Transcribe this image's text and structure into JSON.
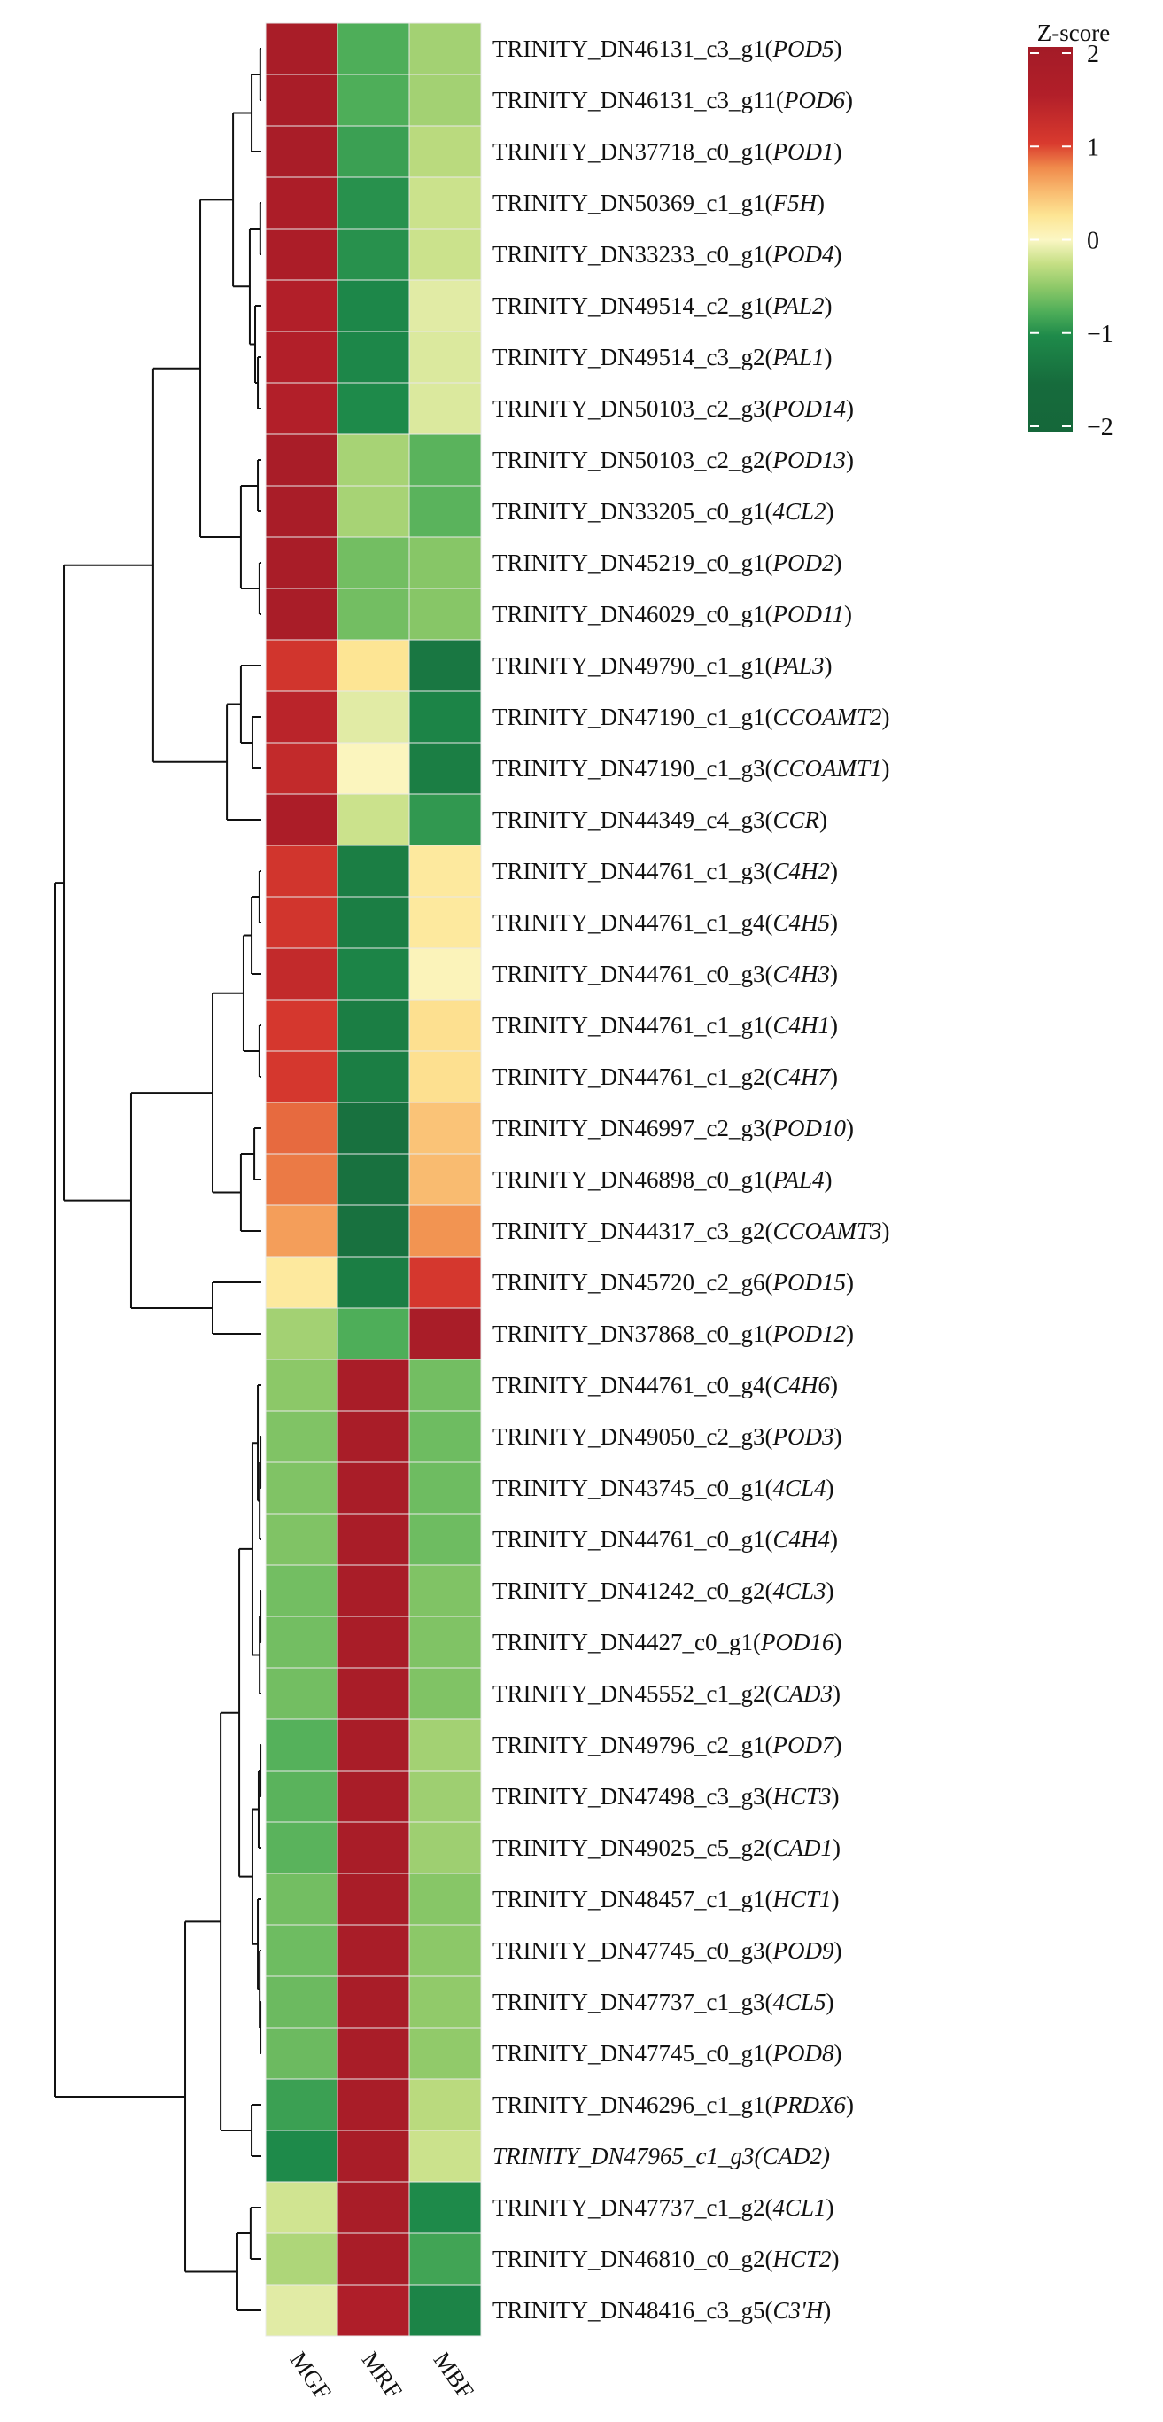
{
  "chart_data": {
    "type": "heatmap",
    "title": "",
    "legend": {
      "title": "Z-score",
      "ticks": [
        2,
        1,
        0,
        -1,
        -2
      ],
      "tick_labels": [
        "2",
        "1",
        "0",
        "−1",
        "−2"
      ],
      "range": [
        -2,
        2
      ],
      "placement": "top-right",
      "colors": {
        "-2": "#15673a",
        "-1.5": "#166b3c",
        "-1": "#1e8a4a",
        "-0.75": "#4eae59",
        "-0.5": "#8cc868",
        "-0.25": "#c5df84",
        "0": "#fbf7c4",
        "0.25": "#fde594",
        "0.5": "#f9bb70",
        "0.75": "#f08a4b",
        "1": "#d93a2e",
        "1.5": "#b21f29",
        "2": "#a31b27"
      }
    },
    "columns": [
      "MGF",
      "MRF",
      "MBF"
    ],
    "rows": [
      {
        "id": "TRINITY_DN46131_c3_g1",
        "gene": "POD5",
        "values": [
          1.8,
          -0.75,
          -0.4
        ]
      },
      {
        "id": "TRINITY_DN46131_c3_g11",
        "gene": "POD6",
        "values": [
          1.8,
          -0.75,
          -0.4
        ]
      },
      {
        "id": "TRINITY_DN37718_c0_g1",
        "gene": "POD1",
        "values": [
          1.8,
          -0.85,
          -0.3
        ]
      },
      {
        "id": "TRINITY_DN50369_c1_g1",
        "gene": "F5H",
        "values": [
          1.7,
          -0.95,
          -0.22
        ]
      },
      {
        "id": "TRINITY_DN33233_c0_g1",
        "gene": "POD4",
        "values": [
          1.7,
          -0.95,
          -0.22
        ]
      },
      {
        "id": "TRINITY_DN49514_c2_g1",
        "gene": "PAL2",
        "values": [
          1.5,
          -1.05,
          -0.12
        ]
      },
      {
        "id": "TRINITY_DN49514_c3_g2",
        "gene": "PAL1",
        "values": [
          1.5,
          -1.05,
          -0.15
        ]
      },
      {
        "id": "TRINITY_DN50103_c2_g3",
        "gene": "POD14",
        "values": [
          1.5,
          -1.0,
          -0.15
        ]
      },
      {
        "id": "TRINITY_DN50103_c2_g2",
        "gene": "POD13",
        "values": [
          1.8,
          -0.38,
          -0.7
        ]
      },
      {
        "id": "TRINITY_DN33205_c0_g1",
        "gene": "4CL2",
        "values": [
          1.8,
          -0.38,
          -0.7
        ]
      },
      {
        "id": "TRINITY_DN45219_c0_g1",
        "gene": "POD2",
        "values": [
          1.8,
          -0.6,
          -0.52
        ]
      },
      {
        "id": "TRINITY_DN46029_c0_g1",
        "gene": "POD11",
        "values": [
          1.8,
          -0.6,
          -0.52
        ]
      },
      {
        "id": "TRINITY_DN49790_c1_g1",
        "gene": "PAL3",
        "values": [
          1.1,
          0.25,
          -1.3
        ]
      },
      {
        "id": "TRINITY_DN47190_c1_g1",
        "gene": "CCOAMT2",
        "values": [
          1.4,
          -0.12,
          -1.1
        ]
      },
      {
        "id": "TRINITY_DN47190_c1_g3",
        "gene": "CCOAMT1",
        "values": [
          1.3,
          0.03,
          -1.2
        ]
      },
      {
        "id": "TRINITY_DN44349_c4_g3",
        "gene": "CCR",
        "values": [
          1.7,
          -0.22,
          -0.9
        ]
      },
      {
        "id": "TRINITY_DN44761_c1_g3",
        "gene": "C4H2",
        "values": [
          1.1,
          -1.2,
          0.2
        ]
      },
      {
        "id": "TRINITY_DN44761_c1_g4",
        "gene": "C4H5",
        "values": [
          1.1,
          -1.2,
          0.2
        ]
      },
      {
        "id": "TRINITY_DN44761_c0_g3",
        "gene": "C4H3",
        "values": [
          1.3,
          -1.1,
          0.05
        ]
      },
      {
        "id": "TRINITY_DN44761_c1_g1",
        "gene": "C4H1",
        "values": [
          1.05,
          -1.2,
          0.28
        ]
      },
      {
        "id": "TRINITY_DN44761_c1_g2",
        "gene": "C4H7",
        "values": [
          1.05,
          -1.2,
          0.28
        ]
      },
      {
        "id": "TRINITY_DN46997_c2_g3",
        "gene": "POD10",
        "values": [
          0.85,
          -1.4,
          0.45
        ]
      },
      {
        "id": "TRINITY_DN46898_c0_g1",
        "gene": "PAL4",
        "values": [
          0.8,
          -1.4,
          0.5
        ]
      },
      {
        "id": "TRINITY_DN44317_c3_g2",
        "gene": "CCOAMT3",
        "values": [
          0.65,
          -1.4,
          0.7
        ]
      },
      {
        "id": "TRINITY_DN45720_c2_g6",
        "gene": "POD15",
        "values": [
          0.2,
          -1.2,
          1.05
        ]
      },
      {
        "id": "TRINITY_DN37868_c0_g1",
        "gene": "POD12",
        "values": [
          -0.4,
          -0.75,
          1.8
        ]
      },
      {
        "id": "TRINITY_DN44761_c0_g4",
        "gene": "C4H6",
        "values": [
          -0.5,
          1.8,
          -0.6
        ]
      },
      {
        "id": "TRINITY_DN49050_c2_g3",
        "gene": "POD3",
        "values": [
          -0.55,
          1.8,
          -0.62
        ]
      },
      {
        "id": "TRINITY_DN43745_c0_g1",
        "gene": "4CL4",
        "values": [
          -0.55,
          1.8,
          -0.62
        ]
      },
      {
        "id": "TRINITY_DN44761_c0_g1",
        "gene": "C4H4",
        "values": [
          -0.55,
          1.8,
          -0.62
        ]
      },
      {
        "id": "TRINITY_DN41242_c0_g2",
        "gene": "4CL3",
        "values": [
          -0.6,
          1.8,
          -0.55
        ]
      },
      {
        "id": "TRINITY_DN4427_c0_g1",
        "gene": "POD16",
        "values": [
          -0.6,
          1.8,
          -0.55
        ]
      },
      {
        "id": "TRINITY_DN45552_c1_g2",
        "gene": "CAD3",
        "values": [
          -0.6,
          1.8,
          -0.55
        ]
      },
      {
        "id": "TRINITY_DN49796_c2_g1",
        "gene": "POD7",
        "values": [
          -0.72,
          1.8,
          -0.4
        ]
      },
      {
        "id": "TRINITY_DN47498_c3_g3",
        "gene": "HCT3",
        "values": [
          -0.7,
          1.8,
          -0.42
        ]
      },
      {
        "id": "TRINITY_DN49025_c5_g2",
        "gene": "CAD1",
        "values": [
          -0.7,
          1.8,
          -0.42
        ]
      },
      {
        "id": "TRINITY_DN48457_c1_g1",
        "gene": "HCT1",
        "values": [
          -0.6,
          1.8,
          -0.52
        ]
      },
      {
        "id": "TRINITY_DN47745_c0_g3",
        "gene": "POD9",
        "values": [
          -0.62,
          1.8,
          -0.5
        ]
      },
      {
        "id": "TRINITY_DN47737_c1_g3",
        "gene": "4CL5",
        "values": [
          -0.63,
          1.8,
          -0.48
        ]
      },
      {
        "id": "TRINITY_DN47745_c0_g1",
        "gene": "POD8",
        "values": [
          -0.63,
          1.8,
          -0.48
        ]
      },
      {
        "id": "TRINITY_DN46296_c1_g1",
        "gene": "PRDX6",
        "values": [
          -0.85,
          1.8,
          -0.3
        ]
      },
      {
        "id": "TRINITY_DN47965_c1_g3",
        "gene": "CAD2",
        "values": [
          -1.0,
          1.8,
          -0.22
        ],
        "all_italic": true
      },
      {
        "id": "TRINITY_DN47737_c1_g2",
        "gene": "4CL1",
        "values": [
          -0.2,
          1.8,
          -1.0
        ]
      },
      {
        "id": "TRINITY_DN46810_c0_g2",
        "gene": "HCT2",
        "values": [
          -0.35,
          1.8,
          -0.82
        ]
      },
      {
        "id": "TRINITY_DN48416_c3_g5",
        "gene": "C3'H",
        "values": [
          -0.12,
          1.6,
          -1.1
        ]
      }
    ],
    "row_dendrogram": {
      "h": 1.0,
      "c": [
        {
          "h": 0.957,
          "c": [
            {
              "h": 0.524,
              "c": [
                {
                  "h": 0.296,
                  "c": [
                    {
                      "h": 0.137,
                      "c": [
                        {
                          "h": 0.047,
                          "c": [
                            {
                              "h": 0.005,
                              "c": [
                                0,
                                1
                              ]
                            },
                            2
                          ]
                        },
                        {
                          "h": 0.056,
                          "c": [
                            {
                              "h": 0.005,
                              "c": [
                                3,
                                4
                              ]
                            },
                            {
                              "h": 0.03,
                              "c": [
                                5,
                                {
                                  "h": 0.017,
                                  "c": [
                                    6,
                                    7
                                  ]
                                }
                              ]
                            }
                          ]
                        }
                      ]
                    },
                    {
                      "h": 0.099,
                      "c": [
                        {
                          "h": 0.017,
                          "c": [
                            8,
                            9
                          ]
                        },
                        {
                          "h": 0.009,
                          "c": [
                            10,
                            11
                          ]
                        }
                      ]
                    }
                  ]
                },
                {
                  "h": 0.167,
                  "c": [
                    {
                      "h": 0.099,
                      "c": [
                        12,
                        {
                          "h": 0.043,
                          "c": [
                            13,
                            14
                          ]
                        }
                      ]
                    },
                    15
                  ]
                }
              ]
            },
            {
              "h": 0.631,
              "c": [
                {
                  "h": 0.236,
                  "c": [
                    {
                      "h": 0.086,
                      "c": [
                        {
                          "h": 0.047,
                          "c": [
                            {
                              "h": 0.009,
                              "c": [
                                16,
                                17
                              ]
                            },
                            18
                          ]
                        },
                        {
                          "h": 0.009,
                          "c": [
                            19,
                            20
                          ]
                        }
                      ]
                    },
                    {
                      "h": 0.099,
                      "c": [
                        {
                          "h": 0.034,
                          "c": [
                            21,
                            22
                          ]
                        },
                        23
                      ]
                    }
                  ]
                },
                {
                  "h": 0.236,
                  "c": [
                    24,
                    25
                  ]
                }
              ]
            }
          ]
        },
        {
          "h": 0.369,
          "c": [
            {
              "h": 0.197,
              "c": [
                {
                  "h": 0.107,
                  "c": [
                    {
                      "h": 0.043,
                      "c": [
                        {
                          "h": 0.017,
                          "c": [
                            26,
                            {
                              "h": 0.008,
                              "c": [
                                {
                                  "h": 0.004,
                                  "c": [
                                    27,
                                    28
                                  ]
                                },
                                29
                              ]
                            }
                          ]
                        },
                        {
                          "h": 0.008,
                          "c": [
                            {
                              "h": 0.004,
                              "c": [
                                30,
                                31
                              ]
                            },
                            32
                          ]
                        }
                      ]
                    },
                    {
                      "h": 0.043,
                      "c": [
                        {
                          "h": 0.013,
                          "c": [
                            {
                              "h": 0.004,
                              "c": [
                                33,
                                34
                              ]
                            },
                            35
                          ]
                        },
                        {
                          "h": 0.017,
                          "c": [
                            36,
                            {
                              "h": 0.008,
                              "c": [
                                37,
                                {
                                  "h": 0.004,
                                  "c": [
                                    38,
                                    39
                                  ]
                                }
                              ]
                            }
                          ]
                        }
                      ]
                    }
                  ]
                },
                {
                  "h": 0.047,
                  "c": [
                    40,
                    41
                  ]
                }
              ]
            },
            {
              "h": 0.116,
              "c": [
                {
                  "h": 0.052,
                  "c": [
                    42,
                    43
                  ]
                },
                44
              ]
            }
          ]
        }
      ]
    }
  }
}
